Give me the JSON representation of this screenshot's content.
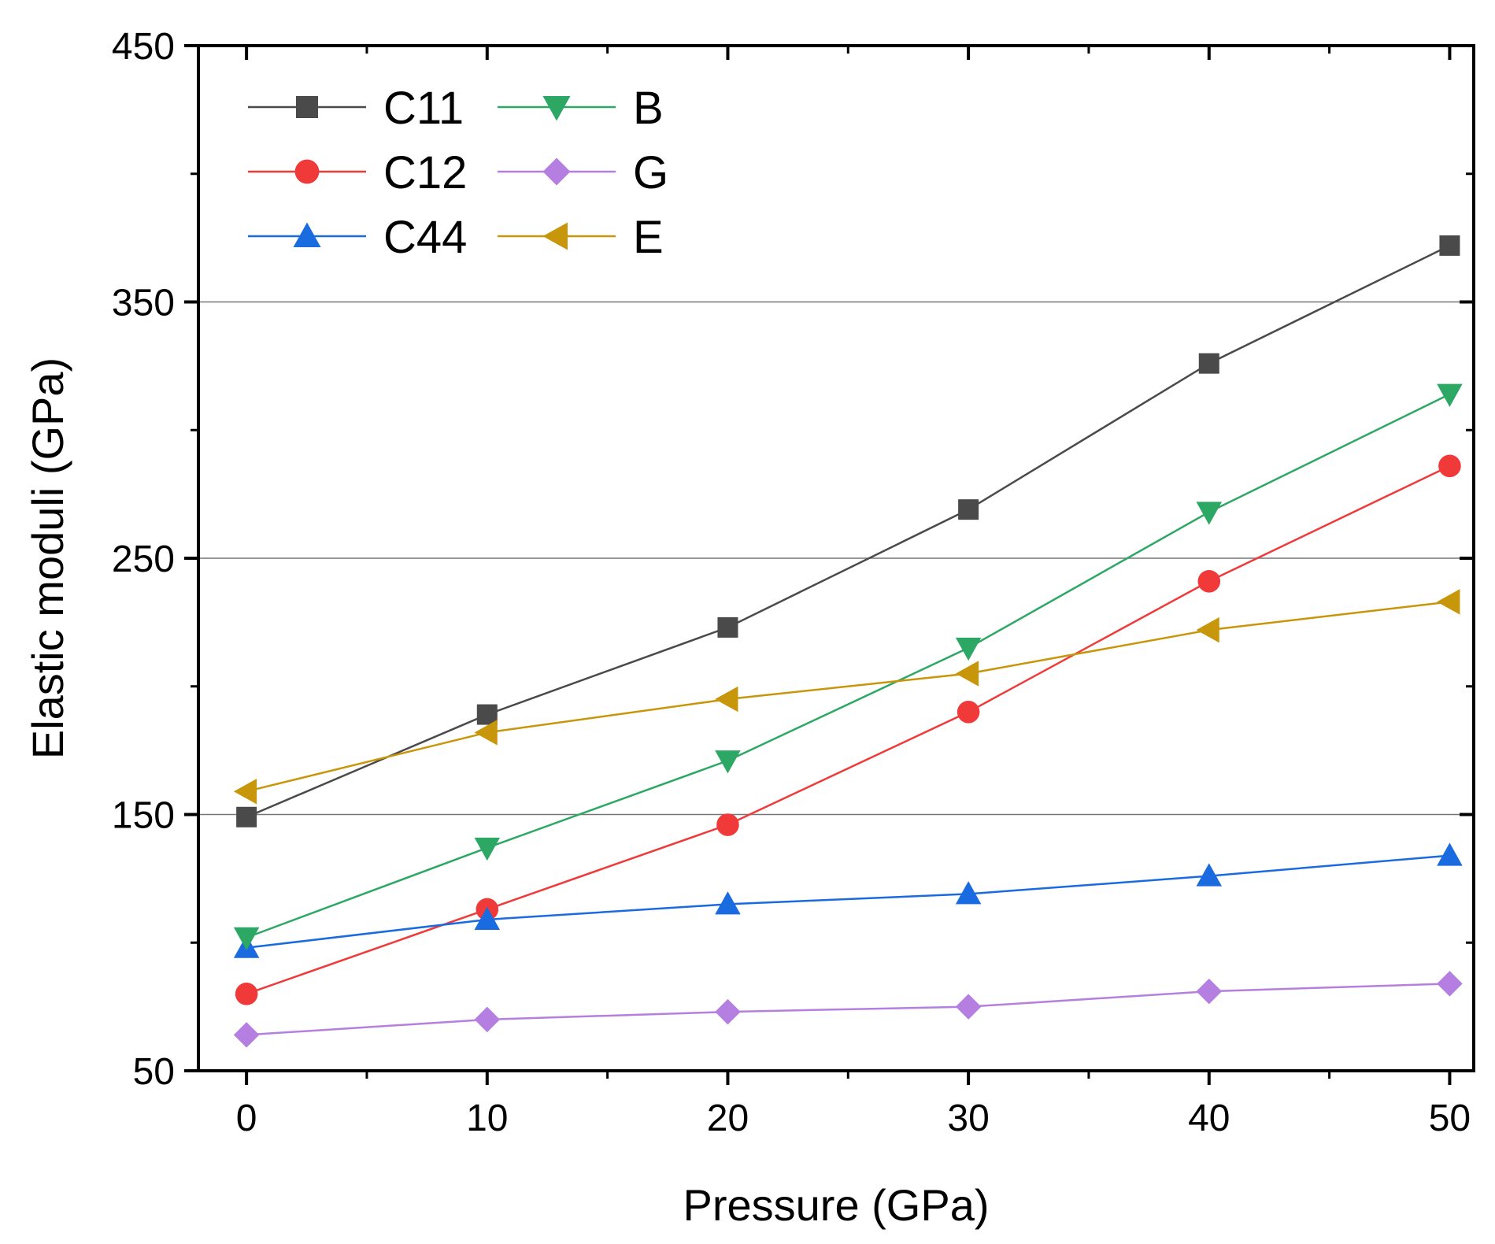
{
  "chart_data": {
    "type": "line",
    "title": "",
    "xlabel": "Pressure (GPa)",
    "ylabel": "Elastic moduli (GPa)",
    "xlim": [
      -2,
      51
    ],
    "ylim": [
      50,
      450
    ],
    "x": [
      0,
      10,
      20,
      30,
      40,
      50
    ],
    "xticks": [
      0,
      10,
      20,
      30,
      40,
      50
    ],
    "xtick_labels": [
      "0",
      "10",
      "20",
      "30",
      "40",
      "50"
    ],
    "yticks": [
      50,
      150,
      250,
      350,
      450
    ],
    "ytick_labels": [
      "50",
      "150",
      "250",
      "350",
      "450"
    ],
    "gridlines_y": [
      150,
      250,
      350
    ],
    "legend_position": "top-left",
    "series": [
      {
        "name": "C11",
        "color": "#4a4a4a",
        "marker": "square",
        "values": [
          149,
          189,
          223,
          269,
          326,
          372
        ]
      },
      {
        "name": "C12",
        "color": "#f03a3a",
        "marker": "circle",
        "values": [
          80,
          113,
          146,
          190,
          241,
          286
        ]
      },
      {
        "name": "C44",
        "color": "#1a6ae0",
        "marker": "triangle-up",
        "values": [
          98,
          109,
          115,
          119,
          126,
          134
        ]
      },
      {
        "name": "B",
        "color": "#2ca864",
        "marker": "triangle-down",
        "values": [
          102,
          137,
          171,
          215,
          268,
          314
        ]
      },
      {
        "name": "G",
        "color": "#b47fe0",
        "marker": "diamond",
        "values": [
          64,
          70,
          73,
          75,
          81,
          84
        ]
      },
      {
        "name": "E",
        "color": "#c8960a",
        "marker": "triangle-left",
        "values": [
          159,
          182,
          195,
          205,
          222,
          233
        ]
      }
    ]
  }
}
